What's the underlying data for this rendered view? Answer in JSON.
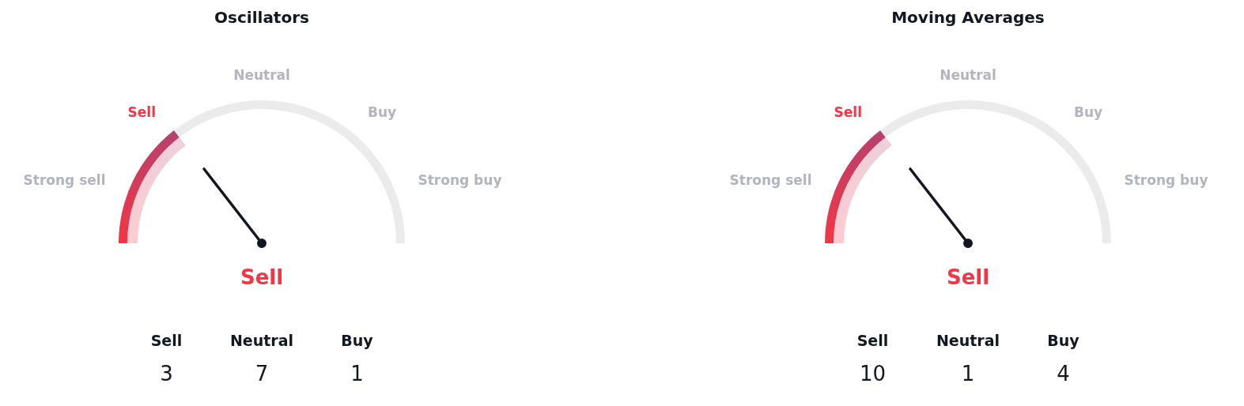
{
  "chart_data": [
    {
      "type": "donut",
      "title": "Oscillators",
      "categories": [
        null,
        null
      ],
      "values": [
        29,
        71
      ],
      "colors": [
        "#f23645",
        "#ebebeb"
      ],
      "annotations": [
        "Strong sell",
        "Sell",
        "Neutral",
        "Buy",
        "Strong buy"
      ],
      "xlabel": "Sell"
    },
    {
      "type": "other",
      "categories": [
        "Sell",
        "Neutral",
        "Buy"
      ],
      "values": [
        3,
        7,
        1
      ],
      "data_labels": true
    },
    {
      "type": "donut",
      "title": "Moving Averages",
      "categories": [
        null,
        null
      ],
      "values": [
        29,
        71
      ],
      "colors": [
        "#f23645",
        "#ebebeb"
      ],
      "annotations": [
        "Strong sell",
        "Sell",
        "Neutral",
        "Buy",
        "Strong buy"
      ],
      "xlabel": "Sell"
    },
    {
      "type": "other",
      "categories": [
        "Sell",
        "Neutral",
        "Buy"
      ],
      "values": [
        10,
        1,
        4
      ],
      "data_labels": true
    }
  ]
}
